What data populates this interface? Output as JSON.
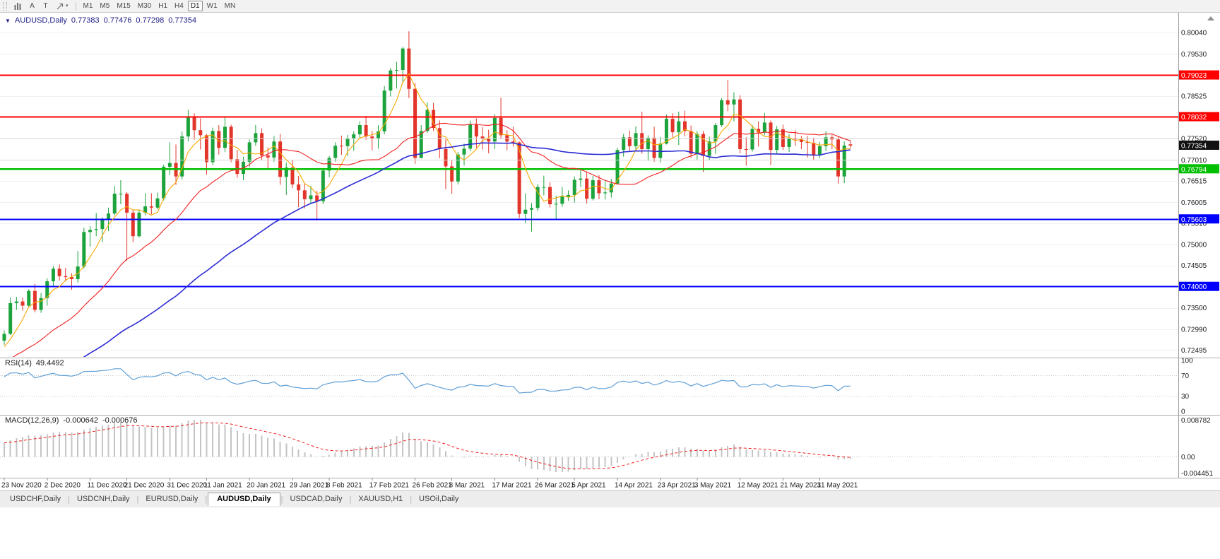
{
  "toolbar": {
    "tools": [
      {
        "name": "chart-mode",
        "icon": "bars"
      },
      {
        "name": "text-label",
        "label": "A"
      },
      {
        "name": "text-tool",
        "label": "T"
      },
      {
        "name": "draw-objects",
        "icon": "arrow",
        "caret": true
      }
    ],
    "timeframes": [
      "M1",
      "M5",
      "M15",
      "M30",
      "H1",
      "H4",
      "D1",
      "W1",
      "MN"
    ],
    "active_timeframe": "D1"
  },
  "chart": {
    "title": {
      "symbol_period": "AUDUSD,Daily",
      "open": "0.77383",
      "high": "0.77476",
      "low": "0.77298",
      "close": "0.77354"
    }
  },
  "chart_data": {
    "type": "candlestick",
    "symbol": "AUDUSD",
    "period": "Daily",
    "colors": {
      "up": "#1CA33C",
      "down": "#E3362B"
    },
    "ohlc": [
      [
        0.7272,
        0.7296,
        0.7262,
        0.7288
      ],
      [
        0.7288,
        0.7374,
        0.7285,
        0.7361
      ],
      [
        0.7361,
        0.7376,
        0.7345,
        0.7365
      ],
      [
        0.7365,
        0.7374,
        0.7343,
        0.7355
      ],
      [
        0.7355,
        0.7394,
        0.7352,
        0.739
      ],
      [
        0.739,
        0.7407,
        0.7339,
        0.7345
      ],
      [
        0.7345,
        0.7385,
        0.7338,
        0.7373
      ],
      [
        0.7373,
        0.742,
        0.7355,
        0.7413
      ],
      [
        0.7413,
        0.7449,
        0.74,
        0.7443
      ],
      [
        0.7443,
        0.7453,
        0.7415,
        0.7425
      ],
      [
        0.7425,
        0.7445,
        0.7413,
        0.7423
      ],
      [
        0.7423,
        0.7432,
        0.7393,
        0.7418
      ],
      [
        0.7418,
        0.7485,
        0.741,
        0.7448
      ],
      [
        0.7448,
        0.754,
        0.7443,
        0.753
      ],
      [
        0.753,
        0.7544,
        0.7495,
        0.7535
      ],
      [
        0.7535,
        0.7575,
        0.752,
        0.7537
      ],
      [
        0.7537,
        0.7565,
        0.7506,
        0.756
      ],
      [
        0.756,
        0.7588,
        0.7532,
        0.7574
      ],
      [
        0.7574,
        0.7639,
        0.757,
        0.7621
      ],
      [
        0.7621,
        0.7653,
        0.7596,
        0.7621
      ],
      [
        0.7621,
        0.7625,
        0.7462,
        0.7576
      ],
      [
        0.7576,
        0.7583,
        0.7506,
        0.752
      ],
      [
        0.752,
        0.7583,
        0.7517,
        0.7576
      ],
      [
        0.7576,
        0.7622,
        0.757,
        0.7591
      ],
      [
        0.7591,
        0.7622,
        0.7572,
        0.7588
      ],
      [
        0.7588,
        0.7624,
        0.7584,
        0.761
      ],
      [
        0.761,
        0.769,
        0.7605,
        0.7685
      ],
      [
        0.7685,
        0.7743,
        0.7665,
        0.7694
      ],
      [
        0.7694,
        0.7738,
        0.7642,
        0.7662
      ],
      [
        0.7662,
        0.7769,
        0.7655,
        0.7757
      ],
      [
        0.7757,
        0.782,
        0.7745,
        0.7805
      ],
      [
        0.7805,
        0.7812,
        0.7749,
        0.7772
      ],
      [
        0.7772,
        0.78,
        0.7726,
        0.776
      ],
      [
        0.776,
        0.7763,
        0.7666,
        0.7696
      ],
      [
        0.7696,
        0.7778,
        0.7689,
        0.777
      ],
      [
        0.777,
        0.7784,
        0.7714,
        0.773
      ],
      [
        0.773,
        0.7805,
        0.772,
        0.778
      ],
      [
        0.778,
        0.7785,
        0.7696,
        0.7703
      ],
      [
        0.7703,
        0.7725,
        0.7659,
        0.7668
      ],
      [
        0.7668,
        0.7709,
        0.7653,
        0.7697
      ],
      [
        0.7697,
        0.775,
        0.7684,
        0.7743
      ],
      [
        0.7743,
        0.7784,
        0.7735,
        0.7765
      ],
      [
        0.7765,
        0.7776,
        0.77,
        0.7712
      ],
      [
        0.7712,
        0.7731,
        0.768,
        0.7707
      ],
      [
        0.7707,
        0.7758,
        0.7697,
        0.7745
      ],
      [
        0.7745,
        0.7763,
        0.7642,
        0.7661
      ],
      [
        0.7661,
        0.7695,
        0.7618,
        0.7683
      ],
      [
        0.7683,
        0.7701,
        0.7634,
        0.7643
      ],
      [
        0.7643,
        0.7663,
        0.7589,
        0.7629
      ],
      [
        0.7629,
        0.7646,
        0.7586,
        0.7608
      ],
      [
        0.7608,
        0.764,
        0.7596,
        0.7617
      ],
      [
        0.7617,
        0.7628,
        0.7557,
        0.7603
      ],
      [
        0.7603,
        0.7682,
        0.7596,
        0.7676
      ],
      [
        0.7676,
        0.7711,
        0.766,
        0.7706
      ],
      [
        0.7706,
        0.7743,
        0.7697,
        0.7735
      ],
      [
        0.7735,
        0.7759,
        0.7713,
        0.7734
      ],
      [
        0.7734,
        0.7761,
        0.7711,
        0.7752
      ],
      [
        0.7752,
        0.7769,
        0.7723,
        0.7762
      ],
      [
        0.7762,
        0.7793,
        0.7752,
        0.7784
      ],
      [
        0.7784,
        0.7806,
        0.7749,
        0.7757
      ],
      [
        0.7757,
        0.777,
        0.7724,
        0.7752
      ],
      [
        0.7752,
        0.7784,
        0.7728,
        0.7769
      ],
      [
        0.7769,
        0.7877,
        0.7762,
        0.7866
      ],
      [
        0.7866,
        0.792,
        0.7852,
        0.7914
      ],
      [
        0.7914,
        0.7934,
        0.7871,
        0.7915
      ],
      [
        0.7915,
        0.797,
        0.7884,
        0.7966
      ],
      [
        0.7966,
        0.8007,
        0.7848,
        0.787
      ],
      [
        0.787,
        0.7884,
        0.7692,
        0.7706
      ],
      [
        0.7706,
        0.7784,
        0.7705,
        0.777
      ],
      [
        0.777,
        0.7838,
        0.7765,
        0.782
      ],
      [
        0.782,
        0.7837,
        0.777,
        0.7777
      ],
      [
        0.7777,
        0.7795,
        0.7705,
        0.7727
      ],
      [
        0.7727,
        0.775,
        0.7632,
        0.7686
      ],
      [
        0.7686,
        0.77,
        0.7621,
        0.765
      ],
      [
        0.765,
        0.772,
        0.7643,
        0.7714
      ],
      [
        0.7714,
        0.774,
        0.7688,
        0.7728
      ],
      [
        0.7728,
        0.7795,
        0.7722,
        0.7786
      ],
      [
        0.7786,
        0.78,
        0.773,
        0.7757
      ],
      [
        0.7757,
        0.7779,
        0.7726,
        0.7751
      ],
      [
        0.7751,
        0.7773,
        0.7717,
        0.7745
      ],
      [
        0.7745,
        0.781,
        0.7727,
        0.7801
      ],
      [
        0.7801,
        0.7849,
        0.7751,
        0.776
      ],
      [
        0.776,
        0.7772,
        0.7724,
        0.7745
      ],
      [
        0.7745,
        0.778,
        0.7733,
        0.7743
      ],
      [
        0.7743,
        0.7745,
        0.7563,
        0.7573
      ],
      [
        0.7573,
        0.7622,
        0.7551,
        0.7583
      ],
      [
        0.7583,
        0.7599,
        0.7531,
        0.7587
      ],
      [
        0.7587,
        0.7644,
        0.758,
        0.7637
      ],
      [
        0.7637,
        0.7664,
        0.7617,
        0.7637
      ],
      [
        0.7637,
        0.7648,
        0.7588,
        0.7596
      ],
      [
        0.7596,
        0.7616,
        0.756,
        0.7597
      ],
      [
        0.7597,
        0.7637,
        0.759,
        0.7614
      ],
      [
        0.7614,
        0.7629,
        0.7604,
        0.7618
      ],
      [
        0.7618,
        0.7662,
        0.76,
        0.7654
      ],
      [
        0.7654,
        0.7677,
        0.7637,
        0.7657
      ],
      [
        0.7657,
        0.7672,
        0.7598,
        0.7609
      ],
      [
        0.7609,
        0.7663,
        0.7605,
        0.7653
      ],
      [
        0.7653,
        0.7665,
        0.7608,
        0.7622
      ],
      [
        0.7622,
        0.765,
        0.7607,
        0.7624
      ],
      [
        0.7624,
        0.7656,
        0.7612,
        0.7645
      ],
      [
        0.7645,
        0.773,
        0.7643,
        0.7725
      ],
      [
        0.7725,
        0.7763,
        0.7709,
        0.7755
      ],
      [
        0.7755,
        0.7771,
        0.7723,
        0.7734
      ],
      [
        0.7734,
        0.7781,
        0.7724,
        0.7765
      ],
      [
        0.7765,
        0.7816,
        0.7716,
        0.7727
      ],
      [
        0.7727,
        0.776,
        0.7699,
        0.7754
      ],
      [
        0.7754,
        0.778,
        0.7697,
        0.7706
      ],
      [
        0.7706,
        0.7756,
        0.7695,
        0.774
      ],
      [
        0.774,
        0.7809,
        0.7738,
        0.7799
      ],
      [
        0.7799,
        0.7812,
        0.7755,
        0.7767
      ],
      [
        0.7767,
        0.7816,
        0.7737,
        0.7793
      ],
      [
        0.7793,
        0.7818,
        0.7757,
        0.777
      ],
      [
        0.777,
        0.7783,
        0.7706,
        0.7716
      ],
      [
        0.7716,
        0.777,
        0.7702,
        0.7763
      ],
      [
        0.7763,
        0.777,
        0.7673,
        0.7711
      ],
      [
        0.7711,
        0.7757,
        0.7701,
        0.7745
      ],
      [
        0.7745,
        0.7789,
        0.7716,
        0.7784
      ],
      [
        0.7784,
        0.7848,
        0.778,
        0.7843
      ],
      [
        0.7843,
        0.7891,
        0.7817,
        0.7833
      ],
      [
        0.7833,
        0.7862,
        0.7793,
        0.7845
      ],
      [
        0.7845,
        0.7855,
        0.7717,
        0.7727
      ],
      [
        0.7727,
        0.7755,
        0.7688,
        0.7726
      ],
      [
        0.7726,
        0.7784,
        0.7721,
        0.7775
      ],
      [
        0.7775,
        0.7793,
        0.7733,
        0.7766
      ],
      [
        0.7766,
        0.7813,
        0.776,
        0.779
      ],
      [
        0.779,
        0.7795,
        0.7689,
        0.7725
      ],
      [
        0.7725,
        0.7782,
        0.7715,
        0.7774
      ],
      [
        0.7774,
        0.7785,
        0.7725,
        0.7732
      ],
      [
        0.7732,
        0.7762,
        0.772,
        0.7753
      ],
      [
        0.7753,
        0.7772,
        0.7735,
        0.775
      ],
      [
        0.775,
        0.7758,
        0.7727,
        0.7744
      ],
      [
        0.7744,
        0.7758,
        0.7707,
        0.7742
      ],
      [
        0.7742,
        0.7754,
        0.7702,
        0.7713
      ],
      [
        0.7713,
        0.7744,
        0.7705,
        0.7734
      ],
      [
        0.7734,
        0.7769,
        0.7723,
        0.7755
      ],
      [
        0.7755,
        0.7761,
        0.7727,
        0.775
      ],
      [
        0.775,
        0.7758,
        0.7645,
        0.7662
      ],
      [
        0.7662,
        0.7745,
        0.7646,
        0.77354
      ],
      [
        0.77383,
        0.77476,
        0.77298,
        0.77354
      ]
    ],
    "x_labels": [
      {
        "i": 0,
        "text": "23 Nov 2020"
      },
      {
        "i": 7,
        "text": "2 Dec 2020"
      },
      {
        "i": 14,
        "text": "11 Dec 2020"
      },
      {
        "i": 20,
        "text": "21 Dec 2020"
      },
      {
        "i": 27,
        "text": "31 Dec 2020"
      },
      {
        "i": 33,
        "text": "11 Jan 2021"
      },
      {
        "i": 40,
        "text": "20 Jan 2021"
      },
      {
        "i": 47,
        "text": "29 Jan 2021"
      },
      {
        "i": 53,
        "text": "8 Feb 2021"
      },
      {
        "i": 60,
        "text": "17 Feb 2021"
      },
      {
        "i": 67,
        "text": "26 Feb 2021"
      },
      {
        "i": 73,
        "text": "8 Mar 2021"
      },
      {
        "i": 80,
        "text": "17 Mar 2021"
      },
      {
        "i": 87,
        "text": "26 Mar 2021"
      },
      {
        "i": 93,
        "text": "5 Apr 2021"
      },
      {
        "i": 100,
        "text": "14 Apr 2021"
      },
      {
        "i": 107,
        "text": "23 Apr 2021"
      },
      {
        "i": 113,
        "text": "3 May 2021"
      },
      {
        "i": 120,
        "text": "12 May 2021"
      },
      {
        "i": 127,
        "text": "21 May 2021"
      },
      {
        "i": 133,
        "text": "31 May 2021"
      }
    ],
    "price_axis": {
      "labels": [
        {
          "text": "0.80040",
          "value": 0.8004
        },
        {
          "text": "0.79530",
          "value": 0.7953
        },
        {
          "text": "0.78525",
          "value": 0.78525
        },
        {
          "text": "0.77520",
          "value": 0.7752
        },
        {
          "text": "0.77010",
          "value": 0.7701
        },
        {
          "text": "0.76515",
          "value": 0.76515
        },
        {
          "text": "0.76005",
          "value": 0.76005
        },
        {
          "text": "0.75510",
          "value": 0.7551
        },
        {
          "text": "0.75000",
          "value": 0.75
        },
        {
          "text": "0.74505",
          "value": 0.74505
        },
        {
          "text": "0.73500",
          "value": 0.735
        },
        {
          "text": "0.72990",
          "value": 0.7299
        },
        {
          "text": "0.72495",
          "value": 0.72495
        }
      ]
    },
    "hlines": [
      {
        "value": 0.79023,
        "label": "0.79023",
        "color": "#FF0000",
        "width": 2
      },
      {
        "value": 0.78032,
        "label": "0.78032",
        "color": "#FF0000",
        "width": 2
      },
      {
        "value": 0.76794,
        "label": "0.76794",
        "color": "#00BE00",
        "width": 2.5
      },
      {
        "value": 0.75603,
        "label": "0.75603",
        "color": "#0000FF",
        "width": 2
      },
      {
        "value": 0.74,
        "label": "0.74000",
        "color": "#0000FF",
        "width": 2
      },
      {
        "value": 0.7752,
        "color": "#D9D9D9",
        "width": 1
      },
      {
        "value": 0.7701,
        "color": "#D9D9D9",
        "width": 1
      }
    ],
    "current_price": {
      "text": "0.77354",
      "value": 0.77354,
      "bg": "#111111",
      "fg": "#FFFFFF"
    },
    "overlays": [
      {
        "name": "ma-fast",
        "period": 5,
        "color": "#F7A800",
        "width": 1.1
      },
      {
        "name": "ma-mid",
        "period": 20,
        "color": "#F02020",
        "width": 1.1
      },
      {
        "name": "ma-slow",
        "period": 50,
        "color": "#2B2BD5",
        "width": 1.6
      }
    ],
    "indicators": {
      "rsi": {
        "title_label": "RSI(14)",
        "title_value": "49.4492",
        "period": 14,
        "color": "#5F9FD6",
        "levels": [
          100,
          70,
          30,
          0
        ],
        "level_lines": [
          70,
          30
        ]
      },
      "macd": {
        "title_label": "MACD(12,26,9)",
        "value_main": "-0.000642",
        "value_signal": "-0.000676",
        "fast": 12,
        "slow": 26,
        "signal": 9,
        "hist_color": "#C4C4C4",
        "signal_color": "#F01E1E",
        "axis_labels": {
          "top": "0.008782",
          "zero": "0.00",
          "bottom": "-0.004451"
        }
      }
    }
  },
  "tabs": {
    "items": [
      "USDCHF,Daily",
      "USDCNH,Daily",
      "EURUSD,Daily",
      "AUDUSD,Daily",
      "USDCAD,Daily",
      "XAUUSD,H1",
      "USOil,Daily"
    ],
    "active": "AUDUSD,Daily"
  }
}
